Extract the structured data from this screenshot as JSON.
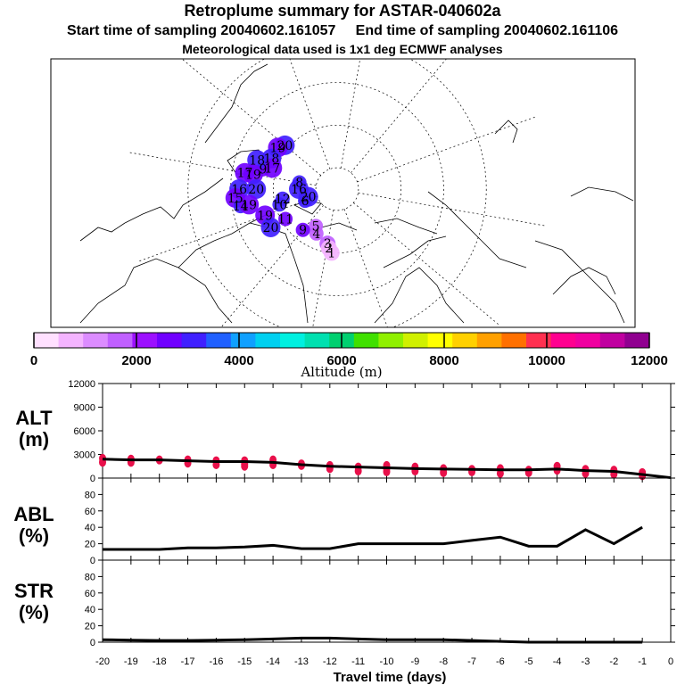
{
  "header": {
    "title": "Retroplume summary for ASTAR-040602a",
    "start_label": "Start time of sampling 20040602.161057",
    "end_label": "End time of sampling 20040602.161106",
    "met_label": "Meteorological data used is 1x1 deg ECMWF analyses"
  },
  "colorbar": {
    "colors": [
      "#ffe0ff",
      "#f4b4ff",
      "#dc8cff",
      "#c060ff",
      "#9c10ff",
      "#7000ff",
      "#4020ff",
      "#2060ff",
      "#10a0ff",
      "#00d0f0",
      "#00f0e0",
      "#00e0b0",
      "#00d070",
      "#40e000",
      "#90f000",
      "#d0f000",
      "#ffff00",
      "#ffd000",
      "#ffa000",
      "#ff7000",
      "#ff3050",
      "#ff0090",
      "#f000a0",
      "#c000a0",
      "#900090"
    ],
    "labels": [
      "0",
      "2000",
      "4000",
      "6000",
      "8000",
      "10000",
      "12000"
    ],
    "axis_label": "Altitude (m)"
  },
  "map_labels": [
    {
      "text": "20",
      "lon": -5,
      "lat": 76
    },
    {
      "text": "6",
      "lon": 0,
      "lat": 74
    },
    {
      "text": "5",
      "lon": 40,
      "lat": 70
    },
    {
      "text": "4",
      "lon": 45,
      "lat": 67
    },
    {
      "text": "3",
      "lon": 60,
      "lat": 64
    },
    {
      "text": "2",
      "lon": 62,
      "lat": 62
    },
    {
      "text": "1",
      "lon": 65,
      "lat": 60
    },
    {
      "text": "9",
      "lon": 30,
      "lat": 65
    },
    {
      "text": "20",
      "lon": -60,
      "lat": 58
    },
    {
      "text": "19",
      "lon": -55,
      "lat": 56
    },
    {
      "text": "18",
      "lon": -45,
      "lat": 56
    },
    {
      "text": "17",
      "lon": -38,
      "lat": 58
    },
    {
      "text": "9",
      "lon": -35,
      "lat": 54
    },
    {
      "text": "18",
      "lon": -40,
      "lat": 50
    },
    {
      "text": "19",
      "lon": -30,
      "lat": 50
    },
    {
      "text": "20",
      "lon": -20,
      "lat": 52
    },
    {
      "text": "17",
      "lon": -30,
      "lat": 46
    },
    {
      "text": "16",
      "lon": -20,
      "lat": 44
    },
    {
      "text": "15",
      "lon": -15,
      "lat": 42
    },
    {
      "text": "14",
      "lon": -10,
      "lat": 44
    },
    {
      "text": "19",
      "lon": 0,
      "lat": 54
    },
    {
      "text": "20",
      "lon": 10,
      "lat": 54
    },
    {
      "text": "19",
      "lon": -10,
      "lat": 48
    },
    {
      "text": "16",
      "lon": -20,
      "lat": 72
    },
    {
      "text": "8",
      "lon": -30,
      "lat": 72
    },
    {
      "text": "12",
      "lon": -10,
      "lat": 64
    },
    {
      "text": "10",
      "lon": -5,
      "lat": 62
    },
    {
      "text": "11",
      "lon": 10,
      "lat": 62
    }
  ],
  "chart_data": [
    {
      "type": "scatter",
      "name": "ALT",
      "ylabel": "ALT (m)",
      "ylim": [
        0,
        12000
      ],
      "yticks": [
        0,
        3000,
        6000,
        9000,
        12000
      ],
      "x": [
        -20,
        -19,
        -18,
        -17,
        -16,
        -15,
        -14,
        -13,
        -12,
        -11,
        -10,
        -9,
        -8,
        -7,
        -6,
        -5,
        -4,
        -3,
        -2,
        -1,
        0
      ],
      "median_line": [
        2400,
        2300,
        2300,
        2200,
        2100,
        2100,
        2000,
        1700,
        1500,
        1400,
        1300,
        1200,
        1150,
        1100,
        1050,
        1050,
        1150,
        950,
        850,
        450,
        50
      ],
      "points": [
        [
          -20,
          2500
        ],
        [
          -20,
          2000
        ],
        [
          -19,
          2400
        ],
        [
          -19,
          2000
        ],
        [
          -18,
          2300
        ],
        [
          -17,
          2300
        ],
        [
          -17,
          1900
        ],
        [
          -16,
          2200
        ],
        [
          -16,
          1700
        ],
        [
          -15,
          2200
        ],
        [
          -15,
          1800
        ],
        [
          -15,
          1500
        ],
        [
          -14,
          2300
        ],
        [
          -14,
          1700
        ],
        [
          -13,
          1800
        ],
        [
          -13,
          1600
        ],
        [
          -12,
          1600
        ],
        [
          -12,
          1200
        ],
        [
          -11,
          1400
        ],
        [
          -11,
          900
        ],
        [
          -10,
          1600
        ],
        [
          -10,
          1200
        ],
        [
          -10,
          800
        ],
        [
          -9,
          1400
        ],
        [
          -9,
          900
        ],
        [
          -8,
          1200
        ],
        [
          -8,
          700
        ],
        [
          -7,
          1100
        ],
        [
          -7,
          800
        ],
        [
          -6,
          1200
        ],
        [
          -6,
          600
        ],
        [
          -5,
          1000
        ],
        [
          -5,
          700
        ],
        [
          -4,
          1500
        ],
        [
          -4,
          1000
        ],
        [
          -3,
          1100
        ],
        [
          -3,
          600
        ],
        [
          -2,
          1000
        ],
        [
          -2,
          500
        ],
        [
          -1,
          700
        ],
        [
          -1,
          300
        ]
      ]
    },
    {
      "type": "line",
      "name": "ABL",
      "ylabel": "ABL (%)",
      "ylim": [
        0,
        100
      ],
      "yticks": [
        0,
        20,
        40,
        60,
        80
      ],
      "x": [
        -20,
        -19,
        -18,
        -17,
        -16,
        -15,
        -14,
        -13,
        -12,
        -11,
        -10,
        -9,
        -8,
        -7,
        -6,
        -5,
        -4,
        -3,
        -2,
        -1
      ],
      "values": [
        13,
        13,
        13,
        15,
        15,
        16,
        18,
        14,
        14,
        20,
        20,
        20,
        20,
        24,
        28,
        17,
        17,
        37,
        20,
        40
      ]
    },
    {
      "type": "line",
      "name": "STR",
      "ylabel": "STR (%)",
      "ylim": [
        0,
        100
      ],
      "yticks": [
        0,
        20,
        40,
        60,
        80
      ],
      "x": [
        -20,
        -19,
        -18,
        -17,
        -16,
        -15,
        -14,
        -13,
        -12,
        -11,
        -10,
        -9,
        -8,
        -7,
        -6,
        -5,
        -4,
        -3,
        -2,
        -1
      ],
      "values": [
        3,
        2.5,
        2,
        2,
        2.5,
        3,
        4,
        5,
        5,
        4,
        3,
        3,
        3,
        2,
        1,
        0,
        0,
        0,
        0,
        0
      ]
    }
  ],
  "time_axis": {
    "ticks": [
      "-20",
      "-19",
      "-18",
      "-17",
      "-16",
      "-15",
      "-14",
      "-13",
      "-12",
      "-11",
      "-10",
      "-9",
      "-8",
      "-7",
      "-6",
      "-5",
      "-4",
      "-3",
      "-2",
      "-1",
      "0"
    ],
    "xlabel": "Travel time (days)"
  },
  "panel_labels": {
    "alt_top": "ALT",
    "alt_bot": "(m)",
    "abl_top": "ABL",
    "abl_bot": "(%)",
    "str_top": "STR",
    "str_bot": "(%)"
  }
}
